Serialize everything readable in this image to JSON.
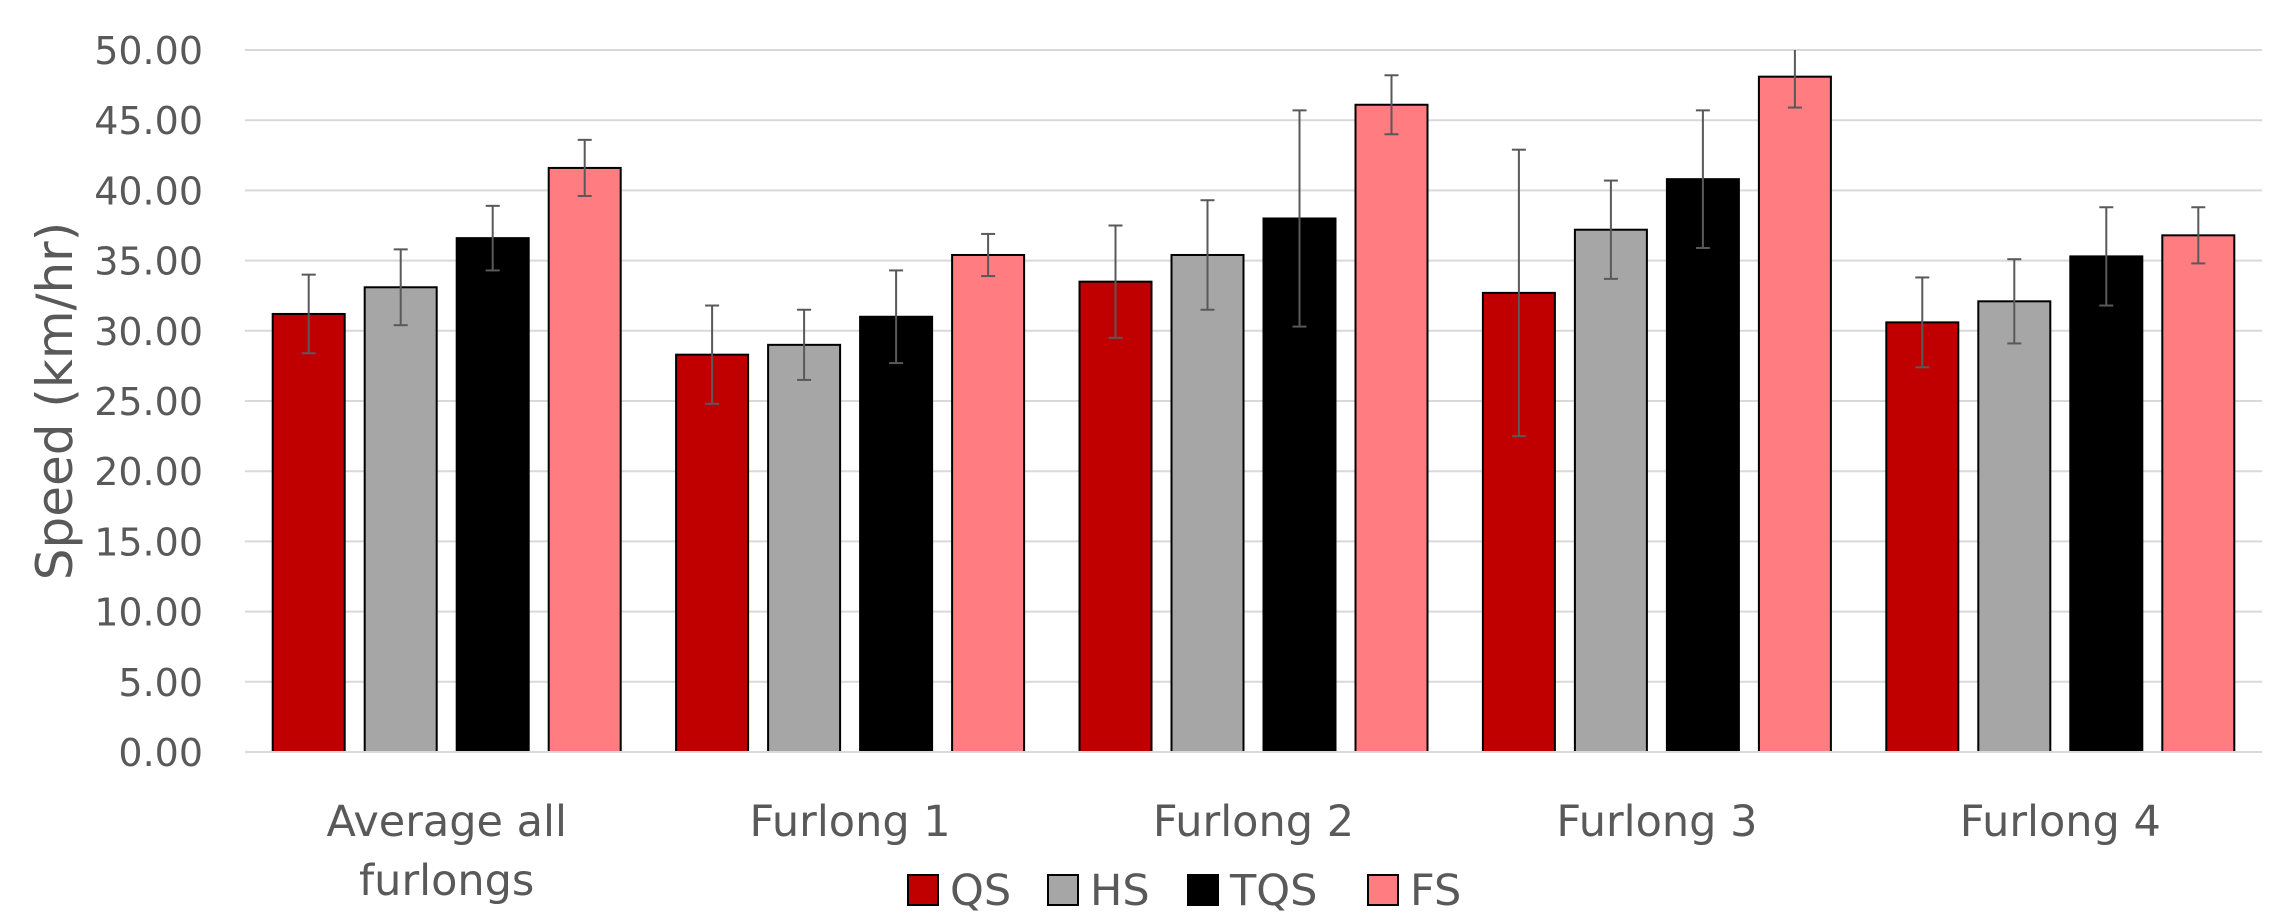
{
  "chart_data": {
    "type": "bar",
    "categories": [
      [
        "Average all",
        "furlongs"
      ],
      [
        "Furlong 1"
      ],
      [
        "Furlong 2"
      ],
      [
        "Furlong 3"
      ],
      [
        "Furlong 4"
      ]
    ],
    "series": [
      {
        "name": "QS",
        "color": "#C00000",
        "values": [
          31.2,
          28.3,
          33.5,
          32.7,
          30.6
        ],
        "errors": [
          2.8,
          3.5,
          4.0,
          10.2,
          3.2
        ]
      },
      {
        "name": "HS",
        "color": "#A6A6A6",
        "values": [
          33.1,
          29.0,
          35.4,
          37.2,
          32.1
        ],
        "errors": [
          2.7,
          2.5,
          3.9,
          3.5,
          3.0
        ]
      },
      {
        "name": "TQS",
        "color": "#000000",
        "values": [
          36.6,
          31.0,
          38.0,
          40.8,
          35.3
        ],
        "errors": [
          2.3,
          3.3,
          7.7,
          4.9,
          3.5
        ]
      },
      {
        "name": "FS",
        "color": "#FF7C80",
        "values": [
          41.6,
          35.4,
          46.1,
          48.1,
          36.8
        ],
        "errors": [
          2.0,
          1.5,
          2.1,
          2.2,
          2.0
        ]
      }
    ],
    "xlabel": "",
    "ylabel": "Speed (km/hr)",
    "ylim": [
      0,
      50
    ],
    "yticks": [
      "0.00",
      "5.00",
      "10.00",
      "15.00",
      "20.00",
      "25.00",
      "30.00",
      "35.00",
      "40.00",
      "45.00",
      "50.00"
    ],
    "grid": true,
    "legend": "bottom-center",
    "error_bars": true
  }
}
